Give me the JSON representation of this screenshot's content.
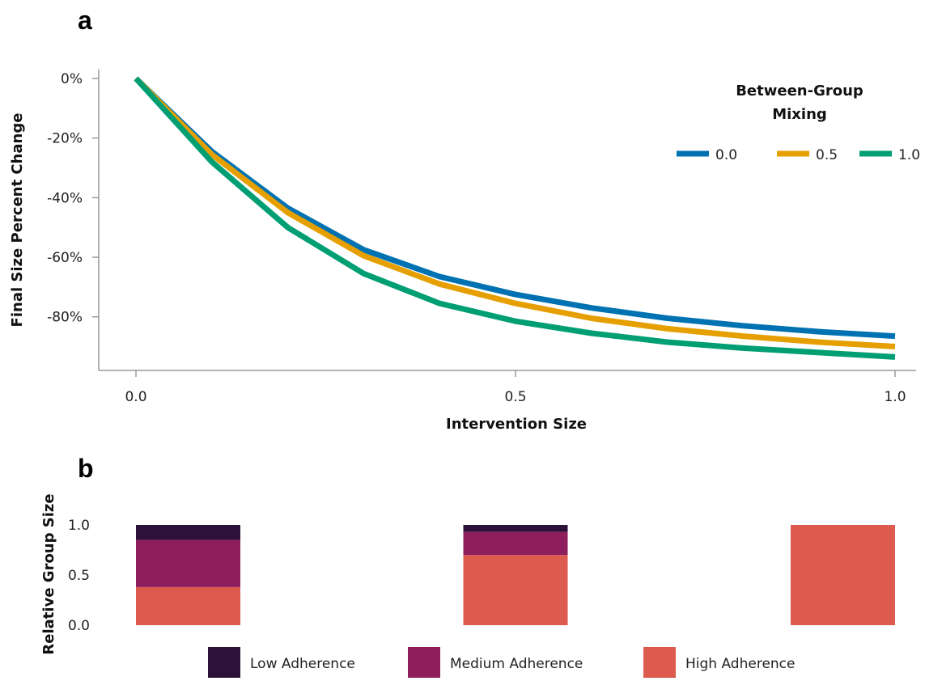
{
  "chart_data": [
    {
      "panel_label": "a",
      "type": "line",
      "xlabel": "Intervention Size",
      "ylabel": "Final Size Percent Change",
      "xlim": [
        0,
        1
      ],
      "ylim": [
        -98,
        3
      ],
      "x_ticks": [
        0.0,
        0.5,
        1.0
      ],
      "x_tick_labels": [
        "0.0",
        "0.5",
        "1.0"
      ],
      "y_ticks": [
        0,
        -20,
        -40,
        -60,
        -80
      ],
      "y_tick_labels": [
        "0%",
        "-20%",
        "-40%",
        "-60%",
        "-80%"
      ],
      "grid": false,
      "legend": {
        "title_lines": [
          "Between-Group",
          "Mixing"
        ],
        "placement": "top-right"
      },
      "x": [
        0.0,
        0.1,
        0.2,
        0.3,
        0.4,
        0.5,
        0.6,
        0.7,
        0.8,
        0.9,
        1.0
      ],
      "series": [
        {
          "name": "0.0",
          "color": "#0072b2",
          "values": [
            0,
            -24.5,
            -43.5,
            -57.5,
            -66.5,
            -72.5,
            -77,
            -80.5,
            -83,
            -85,
            -86.5
          ]
        },
        {
          "name": "0.5",
          "color": "#e69f00",
          "values": [
            0,
            -25.5,
            -45,
            -59.5,
            -69,
            -75.5,
            -80.5,
            -84,
            -86.5,
            -88.5,
            -90
          ]
        },
        {
          "name": "1.0",
          "color": "#009e73",
          "values": [
            0,
            -28,
            -50,
            -65.5,
            -75.5,
            -81.5,
            -85.5,
            -88.5,
            -90.5,
            -92,
            -93.5
          ]
        }
      ]
    },
    {
      "panel_label": "b",
      "type": "bar",
      "stacked": true,
      "ylabel": "Relative Group Size",
      "ylim": [
        0,
        1
      ],
      "y_ticks": [
        0.0,
        0.5,
        1.0
      ],
      "y_tick_labels": [
        "0.0",
        "0.5",
        "1.0"
      ],
      "x_positions": [
        0.0,
        0.5,
        1.0
      ],
      "legend": {
        "placement": "bottom"
      },
      "series": [
        {
          "name": "High Adherence",
          "color": "#dd5a4e",
          "values": [
            0.38,
            0.7,
            1.0
          ]
        },
        {
          "name": "Medium Adherence",
          "color": "#8f1f5c",
          "values": [
            0.47,
            0.23,
            0.0
          ]
        },
        {
          "name": "Low Adherence",
          "color": "#2c1238",
          "values": [
            0.15,
            0.07,
            0.0
          ]
        }
      ]
    }
  ]
}
